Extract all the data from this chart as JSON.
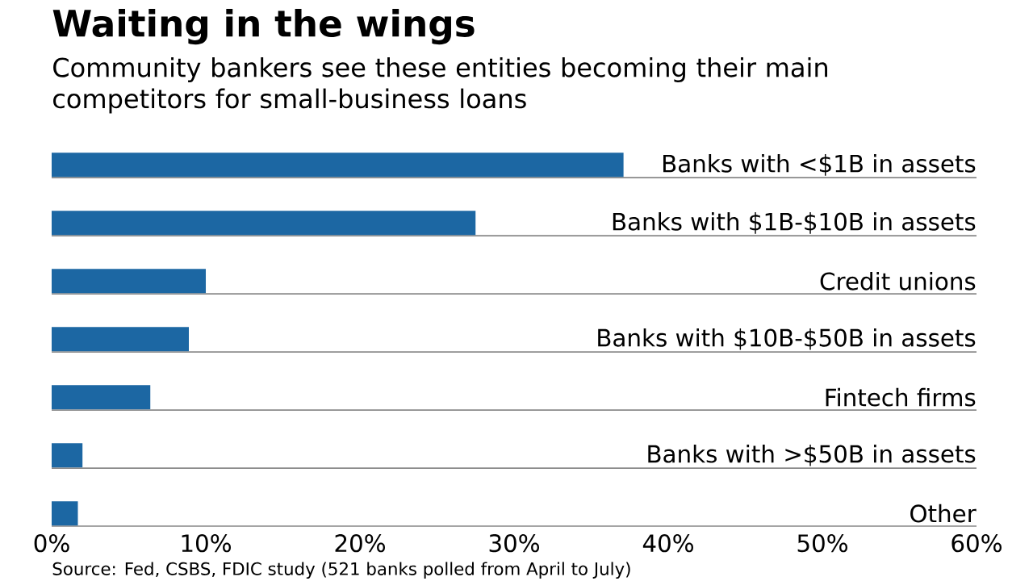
{
  "chart_data": {
    "type": "bar",
    "orientation": "horizontal",
    "title": "Waiting in the wings",
    "subtitle": "Community bankers see these entities becoming their main competitors for small-business loans",
    "categories": [
      "Banks with <$1B in assets",
      "Banks with $1B-$10B in assets",
      "Credit unions",
      "Banks with $10B-$50B in assets",
      "Fintech firms",
      "Banks with >$50B in assets",
      "Other"
    ],
    "values": [
      37.1,
      27.5,
      10.0,
      8.9,
      6.4,
      2.0,
      1.7
    ],
    "color": "#1c67a3",
    "xlim": [
      0,
      60
    ],
    "xticks": [
      {
        "value": 0,
        "label": "0%"
      },
      {
        "value": 10,
        "label": "10%"
      },
      {
        "value": 20,
        "label": "20%"
      },
      {
        "value": 30,
        "label": "30%"
      },
      {
        "value": 40,
        "label": "40%"
      },
      {
        "value": 50,
        "label": "50%"
      },
      {
        "value": 60,
        "label": "60%"
      }
    ],
    "grid": "y",
    "annotations": [
      "Source: Fed, CSBS, FDIC study (521 banks polled from April to July)"
    ]
  }
}
